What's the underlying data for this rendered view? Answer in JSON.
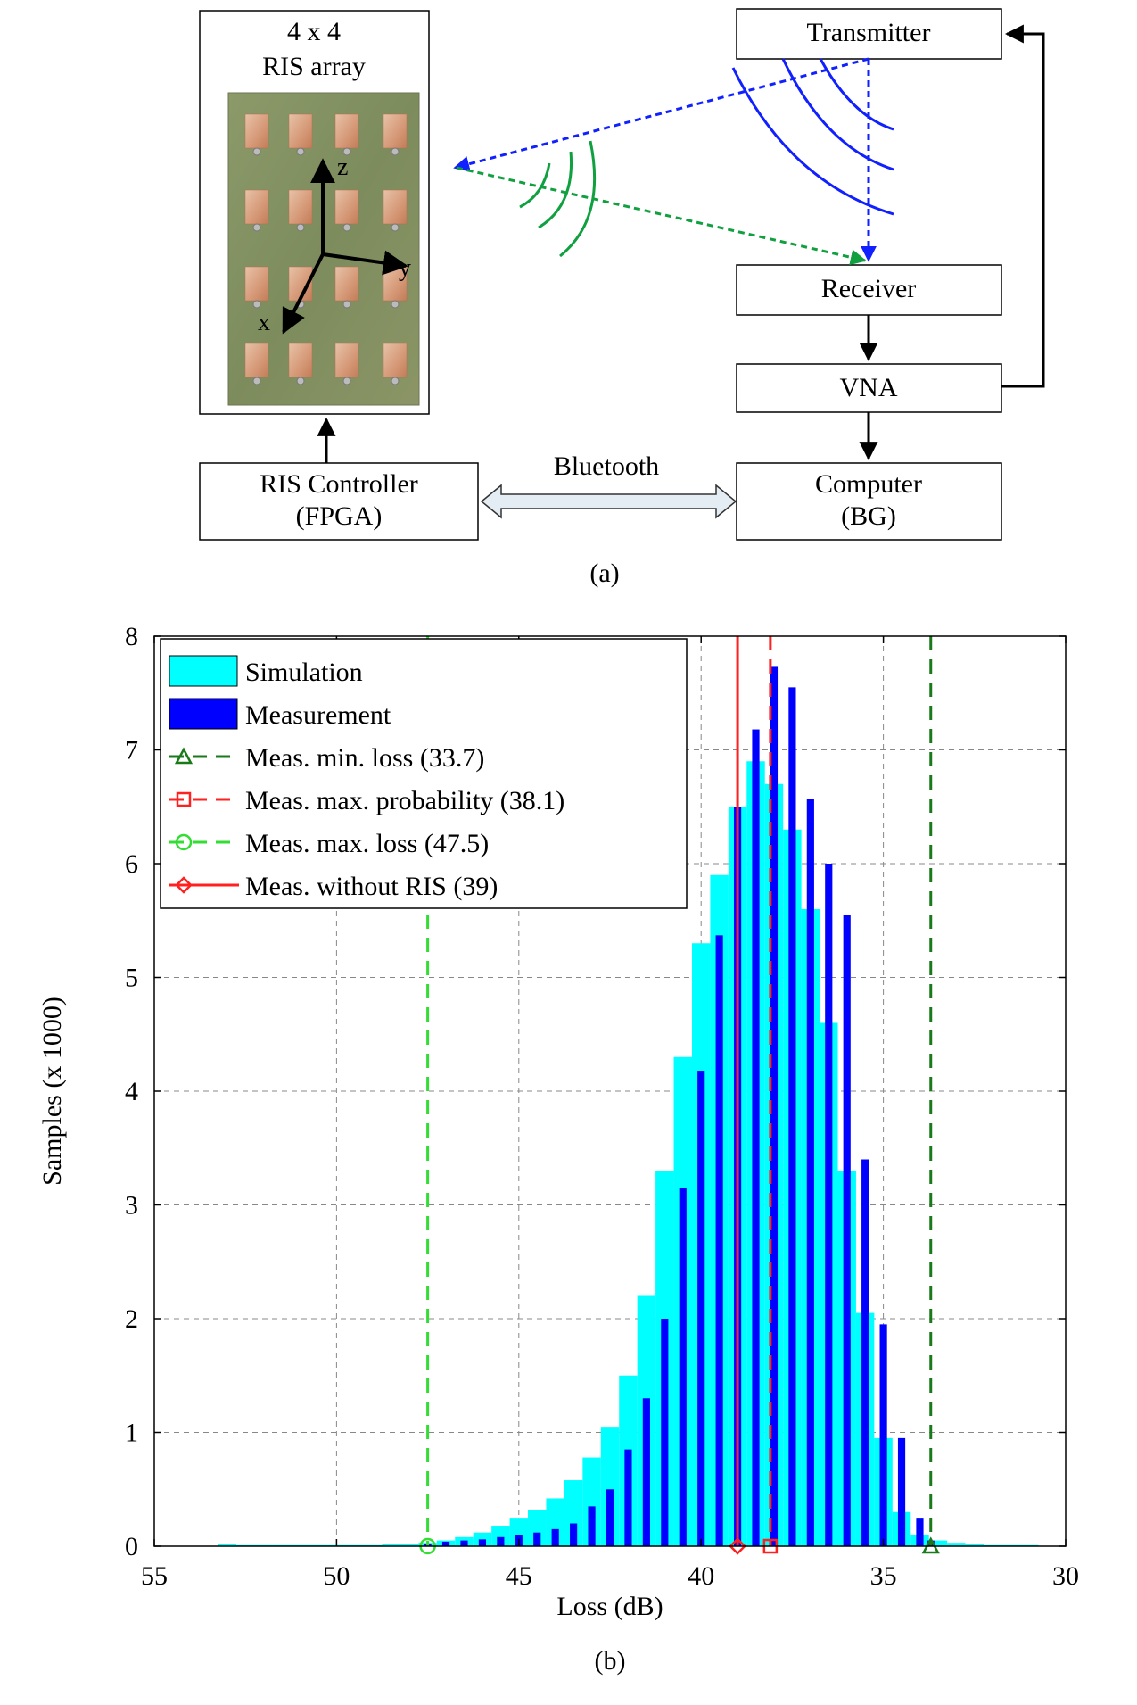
{
  "part_a": {
    "caption": "(a)",
    "ris": {
      "title_line1": "4 x 4",
      "title_line2": "RIS array",
      "axis_z": "z",
      "axis_y": "y",
      "axis_x": "x"
    },
    "transmitter": "Transmitter",
    "receiver": "Receiver",
    "vna": "VNA",
    "controller": {
      "line1": "RIS Controller",
      "line2": "(FPGA)"
    },
    "computer": {
      "line1": "Computer",
      "line2": "(BG)"
    },
    "link_label": "Bluetooth"
  },
  "chart_data": {
    "type": "bar",
    "caption": "(b)",
    "title": "",
    "xlabel": "Loss (dB)",
    "ylabel": "Samples (x 1000)",
    "xlim": [
      55,
      30
    ],
    "x_reversed": true,
    "ylim": [
      0,
      8
    ],
    "xticks": [
      "55",
      "50",
      "45",
      "40",
      "35",
      "30"
    ],
    "yticks": [
      "0",
      "1",
      "2",
      "3",
      "4",
      "5",
      "6",
      "7",
      "8"
    ],
    "grid": true,
    "legend_position": "top-left",
    "series": [
      {
        "name": "Simulation",
        "color": "#00ffff",
        "bin_width": 0.5,
        "x": [
          53.0,
          52.5,
          52.0,
          51.5,
          51.0,
          50.5,
          50.0,
          49.5,
          49.0,
          48.5,
          48.0,
          47.5,
          47.0,
          46.5,
          46.0,
          45.5,
          45.0,
          44.5,
          44.0,
          43.5,
          43.0,
          42.5,
          42.0,
          41.5,
          41.0,
          40.5,
          40.0,
          39.5,
          39.0,
          38.5,
          38.0,
          37.5,
          37.0,
          36.5,
          36.0,
          35.5,
          35.0,
          34.5,
          34.0,
          33.5,
          33.0,
          32.5,
          32.0,
          31.5,
          31.0
        ],
        "values": [
          0.02,
          0.01,
          0.01,
          0.01,
          0.01,
          0.01,
          0.01,
          0.01,
          0.01,
          0.02,
          0.02,
          0.03,
          0.05,
          0.08,
          0.12,
          0.18,
          0.25,
          0.32,
          0.42,
          0.58,
          0.78,
          1.05,
          1.5,
          2.2,
          3.3,
          4.3,
          5.3,
          5.9,
          6.5,
          6.9,
          6.7,
          6.3,
          5.6,
          4.6,
          3.3,
          2.05,
          0.95,
          0.3,
          0.1,
          0.05,
          0.03,
          0.02,
          0.01,
          0.01,
          0.01
        ]
      },
      {
        "name": "Measurement",
        "color": "#0000ff",
        "bar_width": 0.2,
        "x": [
          47.5,
          47.0,
          46.5,
          46.0,
          45.5,
          45.0,
          44.5,
          44.0,
          43.5,
          43.0,
          42.5,
          42.0,
          41.5,
          41.0,
          40.5,
          40.0,
          39.5,
          39.0,
          38.5,
          38.0,
          37.5,
          37.0,
          36.5,
          36.0,
          35.5,
          35.0,
          34.5,
          34.0,
          33.7
        ],
        "values": [
          0.02,
          0.04,
          0.05,
          0.06,
          0.08,
          0.1,
          0.12,
          0.15,
          0.2,
          0.35,
          0.5,
          0.85,
          1.3,
          2.0,
          3.15,
          4.18,
          5.37,
          6.5,
          7.18,
          7.73,
          7.55,
          6.57,
          6.0,
          5.55,
          3.4,
          1.95,
          0.95,
          0.25,
          0.05
        ]
      }
    ],
    "markers": [
      {
        "name": "Meas. min. loss (33.7)",
        "x": 33.7,
        "color": "#1a7a1a",
        "style": "dashed",
        "marker": "triangle"
      },
      {
        "name": "Meas. max. probability (38.1)",
        "x": 38.1,
        "color": "#ff2020",
        "style": "dashed",
        "marker": "square"
      },
      {
        "name": "Meas. max. loss (47.5)",
        "x": 47.5,
        "color": "#33dd33",
        "style": "dashed",
        "marker": "circle"
      },
      {
        "name": "Meas. without RIS (39)",
        "x": 39,
        "color": "#ff2020",
        "style": "solid",
        "marker": "diamond"
      }
    ]
  }
}
